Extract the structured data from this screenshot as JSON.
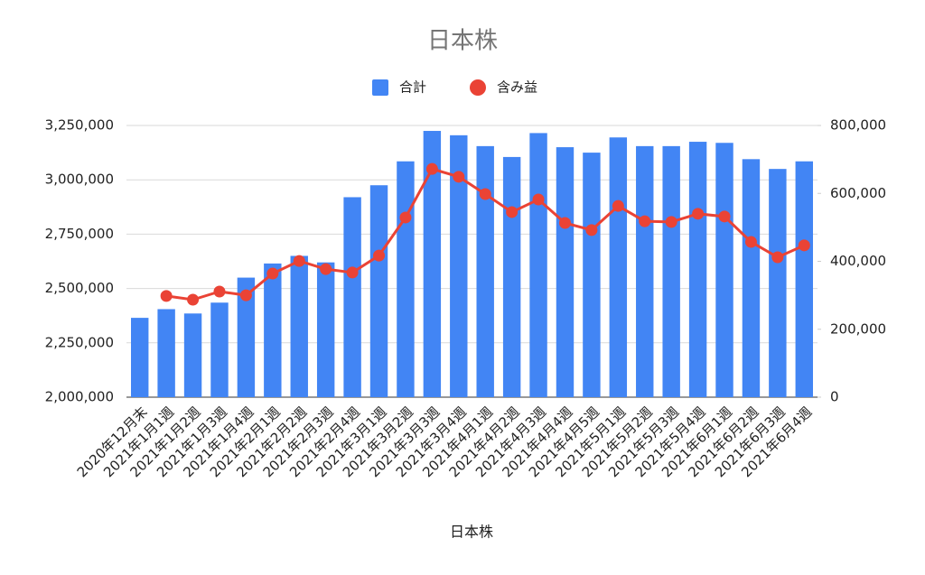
{
  "chart_data": {
    "type": "bar_line",
    "title": "日本株",
    "x_label": "日本株",
    "categories": [
      "2020年12月末",
      "2021年1月1週",
      "2021年1月2週",
      "2021年1月3週",
      "2021年1月4週",
      "2021年2月1週",
      "2021年2月2週",
      "2021年2月3週",
      "2021年2月4週",
      "2021年3月1週",
      "2021年3月2週",
      "2021年3月3週",
      "2021年3月4週",
      "2021年4月1週",
      "2021年4月2週",
      "2021年4月3週",
      "2021年4月4週",
      "2021年4月5週",
      "2021年5月1週",
      "2021年5月2週",
      "2021年5月3週",
      "2021年5月4週",
      "2021年6月1週",
      "2021年6月2週",
      "2021年6月3週",
      "2021年6月4週"
    ],
    "series": [
      {
        "name": "合計",
        "type": "bar",
        "color": "#4285f4",
        "values": [
          2365000,
          2405000,
          2385000,
          2435000,
          2550000,
          2615000,
          2650000,
          2620000,
          2920000,
          2975000,
          3085000,
          3225000,
          3205000,
          3155000,
          3105000,
          3215000,
          3150000,
          3125000,
          3195000,
          3155000,
          3155000,
          3175000,
          3170000,
          3095000,
          3050000,
          3085000
        ]
      },
      {
        "name": "含み益",
        "type": "line",
        "axis": "y2",
        "color": "#ea4335",
        "values": [
          null,
          298000,
          287000,
          311000,
          300000,
          364000,
          401000,
          377000,
          367000,
          417000,
          529000,
          672000,
          649000,
          598000,
          545000,
          582000,
          513000,
          492000,
          563000,
          518000,
          516000,
          540000,
          532000,
          457000,
          412000,
          447000
        ]
      }
    ],
    "ylim": [
      2000000,
      3250000
    ],
    "yticks": [
      {
        "value": 2000000,
        "label": "2,000,000"
      },
      {
        "value": 2250000,
        "label": "2,250,000"
      },
      {
        "value": 2500000,
        "label": "2,500,000"
      },
      {
        "value": 2750000,
        "label": "2,750,000"
      },
      {
        "value": 3000000,
        "label": "3,000,000"
      },
      {
        "value": 3250000,
        "label": "3,250,000"
      }
    ],
    "y2lim": [
      0,
      800000
    ],
    "y2ticks": [
      0,
      {
        "value": 200000,
        "label": "200,000"
      },
      {
        "value": 400000,
        "label": "400,000"
      },
      {
        "value": 600000,
        "label": "600,000"
      },
      {
        "value": 800000,
        "label": "800,000"
      }
    ],
    "grid": true,
    "legend": "top"
  }
}
